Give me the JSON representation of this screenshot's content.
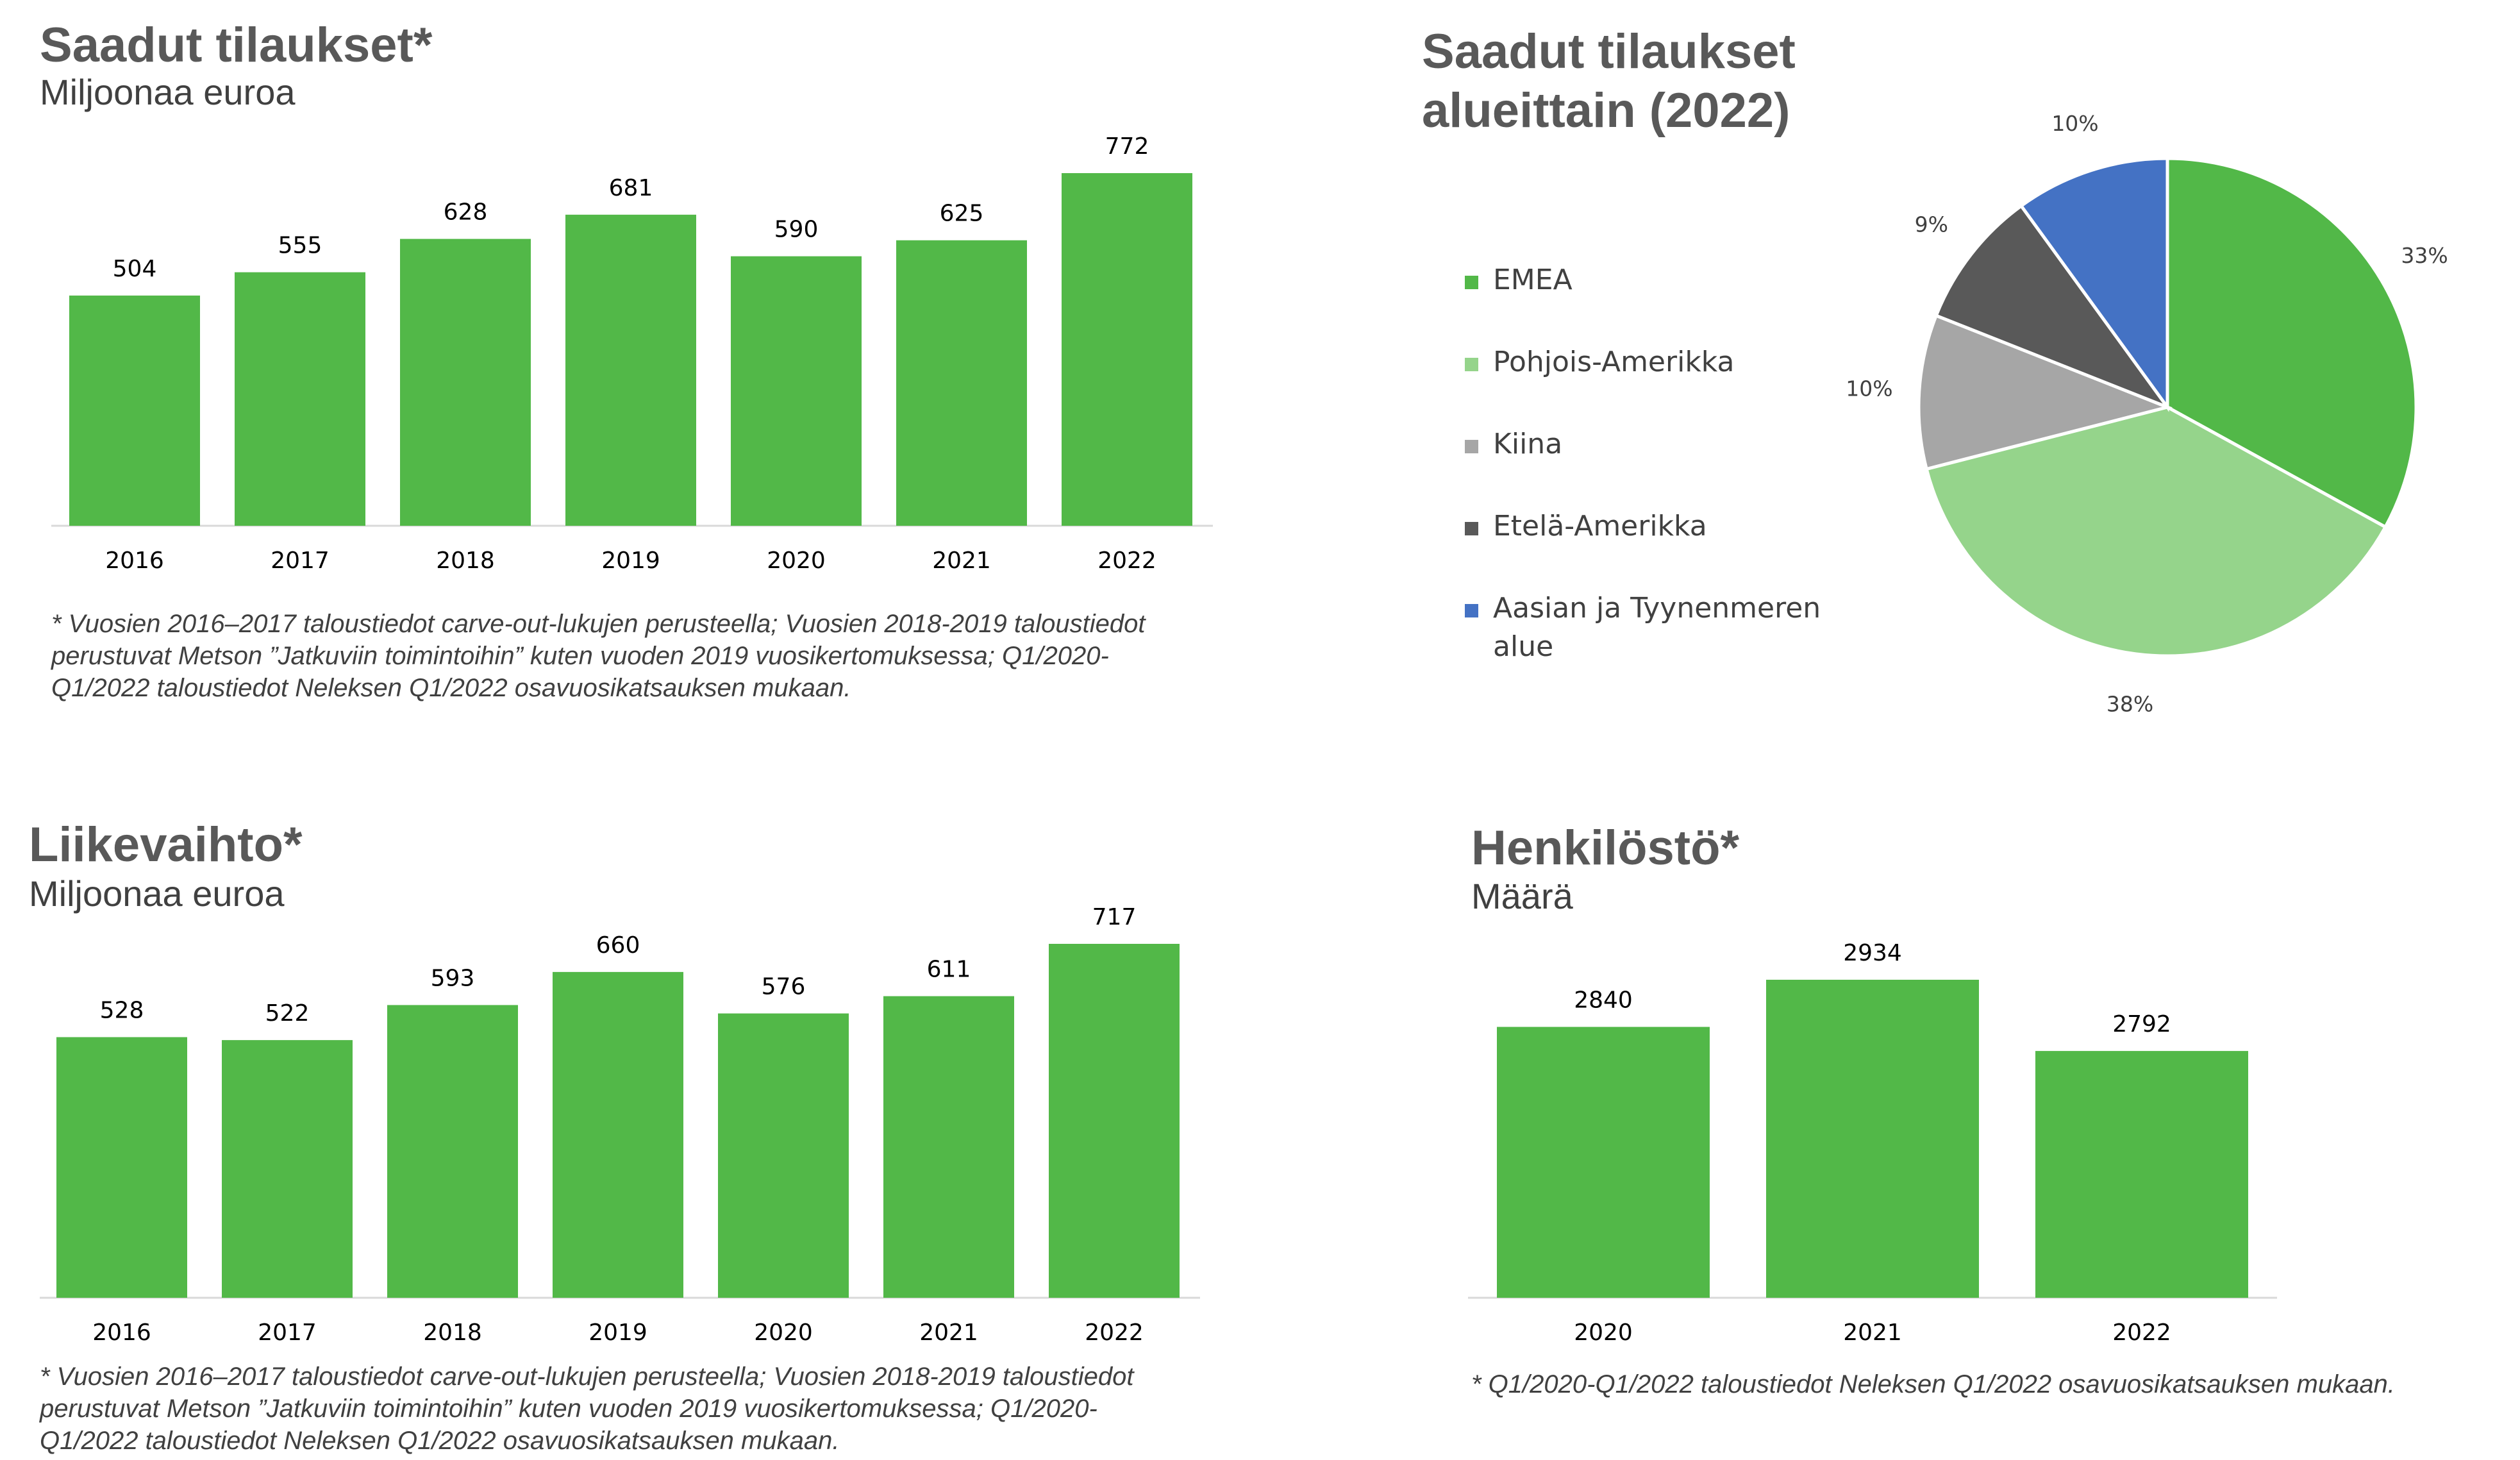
{
  "colors": {
    "bar": "#52b848",
    "axis": "#d9d9d9",
    "emea": "#52b848",
    "north_america": "#95d48b",
    "china": "#a6a6a6",
    "south_america": "#595959",
    "apac": "#4472c4"
  },
  "orders": {
    "title": "Saadut tilaukset*",
    "subtitle": "Miljoonaa euroa",
    "footnote": "* Vuosien 2016–2017 taloustiedot carve-out-lukujen perusteella; Vuosien 2018-2019 taloustiedot perustuvat Metson ”Jatkuviin toimintoihin” kuten vuoden 2019 vuosikertomuksessa; Q1/2020-Q1/2022 taloustiedot Neleksen Q1/2022 osavuosikatsauksen mukaan."
  },
  "regions": {
    "title_line1": "Saadut tilaukset",
    "title_line2": "alueittain (2022)"
  },
  "sales": {
    "title": "Liikevaihto*",
    "subtitle": "Miljoonaa euroa",
    "footnote": "* Vuosien 2016–2017 taloustiedot carve-out-lukujen perusteella; Vuosien 2018-2019 taloustiedot perustuvat Metson ”Jatkuviin toimintoihin” kuten vuoden 2019 vuosikertomuksessa; Q1/2020-Q1/2022 taloustiedot Neleksen Q1/2022 osavuosikatsauksen mukaan."
  },
  "personnel": {
    "title": "Henkilöstö*",
    "subtitle": "Määrä",
    "footnote": "* Q1/2020-Q1/2022 taloustiedot Neleksen Q1/2022 osavuosikatsauksen mukaan."
  },
  "chart_data": [
    {
      "type": "bar",
      "title": "Saadut tilaukset*",
      "subtitle": "Miljoonaa euroa",
      "categories": [
        "2016",
        "2017",
        "2018",
        "2019",
        "2020",
        "2021",
        "2022"
      ],
      "values": [
        504,
        555,
        628,
        681,
        590,
        625,
        772
      ],
      "ylim": [
        0,
        772
      ],
      "grid": false
    },
    {
      "type": "pie",
      "title": "Saadut tilaukset alueittain (2022)",
      "legend_position": "left",
      "slices": [
        {
          "label": "EMEA",
          "value": 33,
          "display": "33%",
          "color": "#52b848"
        },
        {
          "label": "Pohjois-Amerikka",
          "value": 38,
          "display": "38%",
          "color": "#95d48b"
        },
        {
          "label": "Kiina",
          "value": 10,
          "display": "10%",
          "color": "#a6a6a6"
        },
        {
          "label": "Etelä-Amerikka",
          "value": 9,
          "display": "9%",
          "color": "#595959"
        },
        {
          "label": "Aasian ja Tyynenmeren alue",
          "value": 10,
          "display": "10%",
          "color": "#4472c4"
        }
      ]
    },
    {
      "type": "bar",
      "title": "Liikevaihto*",
      "subtitle": "Miljoonaa euroa",
      "categories": [
        "2016",
        "2017",
        "2018",
        "2019",
        "2020",
        "2021",
        "2022"
      ],
      "values": [
        528,
        522,
        593,
        660,
        576,
        611,
        717
      ],
      "ylim": [
        0,
        717
      ],
      "grid": false
    },
    {
      "type": "bar",
      "title": "Henkilöstö*",
      "subtitle": "Määrä",
      "categories": [
        "2020",
        "2021",
        "2022"
      ],
      "values": [
        2840,
        2934,
        2792
      ],
      "ylim": [
        2300,
        2934
      ],
      "grid": false
    }
  ]
}
